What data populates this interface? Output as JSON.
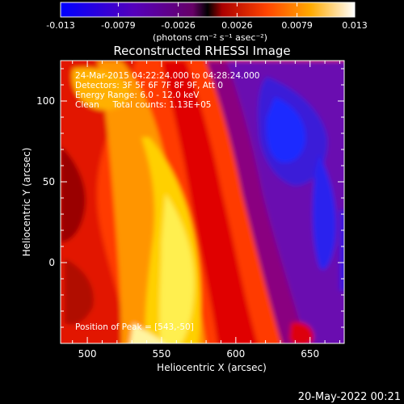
{
  "colorbar": {
    "ticks": [
      "-0.013",
      "-0.0079",
      "-0.0026",
      "0.0026",
      "0.0079",
      "0.013"
    ],
    "tick_values": [
      -0.013,
      -0.0079,
      -0.0026,
      0.0026,
      0.0079,
      0.013
    ],
    "range": [
      -0.013,
      0.013
    ],
    "unit_label": "(photons cm⁻² s⁻¹ asec⁻²)"
  },
  "title": "Reconstructed RHESSI Image",
  "annotations": {
    "time_range": "24-Mar-2015 04:22:24.000 to 04:28:24.000",
    "detectors": "Detectors: 3F 5F 6F 7F 8F 9F, Att 0",
    "energy_range": "Energy Range: 6.0 - 12.0 keV",
    "method_counts": "Clean     Total counts: 1.13E+05",
    "peak_position": "Position of Peak = [543,-50]"
  },
  "axes": {
    "xlabel": "Heliocentric X (arcsec)",
    "ylabel": "Heliocentric Y (arcsec)",
    "x_ticks": [
      "500",
      "550",
      "600",
      "650"
    ],
    "x_tick_values": [
      500,
      550,
      600,
      650
    ],
    "y_ticks": [
      "0",
      "50",
      "100"
    ],
    "y_tick_values": [
      0,
      50,
      100
    ],
    "xlim": [
      482,
      673
    ],
    "ylim": [
      -50,
      125
    ]
  },
  "footer": {
    "date_stamp": "20-May-2022 00:21"
  },
  "colors": {
    "background": "#000000",
    "text": "#ffffff",
    "colormap": [
      "#0000ff",
      "#4400c8",
      "#7700aa",
      "#aa0055",
      "#dd0000",
      "#ff5500",
      "#ffaa00",
      "#ffee44",
      "#ffffff"
    ]
  }
}
